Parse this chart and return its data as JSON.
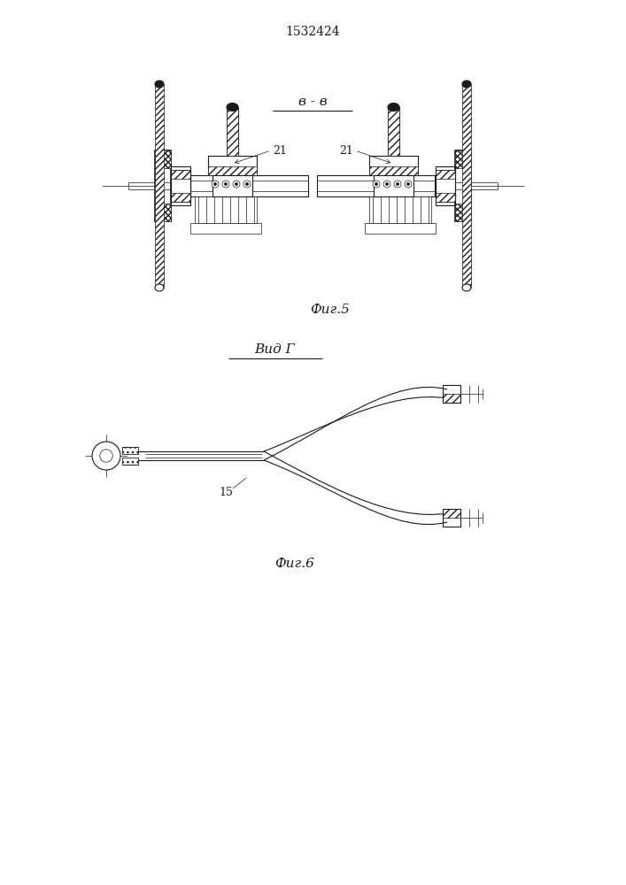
{
  "title": "1532424",
  "fig5_label": "в - в",
  "fig5_caption": "Фиг.5",
  "fig6_label": "Вид Г",
  "fig6_caption": "Фиг.6",
  "label_21_left": "21",
  "label_21_right": "21",
  "label_15": "15",
  "bg_color": "#ffffff",
  "line_color": "#1a1a1a"
}
